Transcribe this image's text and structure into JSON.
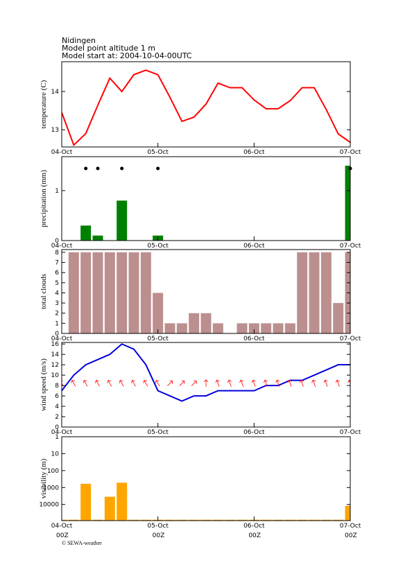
{
  "header": {
    "station": "Nidingen",
    "altitude": "Model point altitude  1 m",
    "model_start": "Model start at: 2004-10-04-00UTC"
  },
  "footer": {
    "copyright": "© SEWA-weather"
  },
  "chart_data": [
    {
      "type": "line",
      "ylabel": "temperature (C)",
      "color": "#ff0000",
      "x": [
        0,
        3,
        6,
        9,
        12,
        15,
        18,
        21,
        24,
        27,
        30,
        33,
        36,
        39,
        42,
        45,
        48,
        51,
        54,
        57,
        60,
        63,
        66,
        69,
        72
      ],
      "values": [
        13.45,
        12.6,
        12.9,
        13.64,
        14.35,
        14.0,
        14.44,
        14.56,
        14.44,
        13.85,
        13.22,
        13.33,
        13.67,
        14.22,
        14.1,
        14.1,
        13.78,
        13.55,
        13.55,
        13.76,
        14.1,
        14.1,
        13.53,
        12.89,
        12.67
      ],
      "xlim": [
        0,
        72
      ],
      "xticks": [
        {
          "value": 0,
          "label": "04-Oct"
        },
        {
          "value": 24,
          "label": "05-Oct"
        },
        {
          "value": 48,
          "label": "06-Oct"
        },
        {
          "value": 72,
          "label": "07-Oct"
        }
      ],
      "ylim": [
        12.55,
        14.78
      ],
      "yticks": [
        13,
        14
      ]
    },
    {
      "type": "bar",
      "ylabel": "precipitation (mm)",
      "color": "#008000",
      "x": [
        0,
        3,
        6,
        9,
        12,
        15,
        18,
        21,
        24,
        27,
        30,
        33,
        36,
        39,
        42,
        45,
        48,
        51,
        54,
        57,
        60,
        63,
        66,
        69,
        72
      ],
      "values": [
        0,
        0,
        0.3,
        0.1,
        0,
        0.8,
        0,
        0,
        0.1,
        0,
        0,
        0,
        0,
        0,
        0,
        0,
        0,
        0,
        0,
        0,
        0,
        0,
        0,
        0,
        1.5
      ],
      "xlim": [
        0,
        72
      ],
      "xticks": [
        {
          "value": 0,
          "label": "04-Oct"
        },
        {
          "value": 24,
          "label": "05-Oct"
        },
        {
          "value": 48,
          "label": "06-Oct"
        },
        {
          "value": 72,
          "label": "07-Oct"
        }
      ],
      "ylim": [
        0,
        1.68
      ],
      "yticks": [
        0,
        1
      ]
    },
    {
      "type": "bar",
      "ylabel": "total clouds",
      "color": "#bc8f8f",
      "x": [
        0,
        3,
        6,
        9,
        12,
        15,
        18,
        21,
        24,
        27,
        30,
        33,
        36,
        39,
        42,
        45,
        48,
        51,
        54,
        57,
        60,
        63,
        66,
        69,
        72
      ],
      "values": [
        null,
        8,
        8,
        8,
        8,
        8,
        8,
        8,
        4,
        1,
        1,
        2,
        2,
        1,
        0,
        1,
        1,
        1,
        1,
        1,
        8,
        8,
        8,
        3,
        8
      ],
      "xlim": [
        0,
        72
      ],
      "xticks": [
        {
          "value": 0,
          "label": "04-Oct"
        },
        {
          "value": 24,
          "label": "05-Oct"
        },
        {
          "value": 48,
          "label": "06-Oct"
        },
        {
          "value": 72,
          "label": "07-Oct"
        }
      ],
      "ylim": [
        0,
        8.27
      ],
      "yticks": [
        0,
        1,
        2,
        3,
        4,
        5,
        6,
        7,
        8
      ]
    },
    {
      "type": "line",
      "ylabel": "wind speed (m/s)",
      "color": "#0000dd",
      "x": [
        0,
        3,
        6,
        9,
        12,
        15,
        18,
        21,
        24,
        27,
        30,
        33,
        36,
        39,
        42,
        45,
        48,
        51,
        54,
        57,
        60,
        63,
        66,
        69,
        72
      ],
      "values": [
        7,
        10,
        12,
        13,
        14,
        16,
        15,
        12,
        7,
        6,
        5,
        6,
        6,
        7,
        7,
        7,
        7,
        8,
        8,
        9,
        9,
        10,
        11,
        12,
        12
      ],
      "arrows": {
        "color": "#ff0000",
        "angles": [
          330,
          330,
          330,
          330,
          330,
          330,
          330,
          330,
          330,
          45,
          45,
          45,
          0,
          340,
          340,
          340,
          340,
          340,
          340,
          340,
          340,
          340,
          340,
          340,
          340
        ]
      },
      "xlim": [
        0,
        72
      ],
      "xticks": [
        {
          "value": 0,
          "label": "04-Oct"
        },
        {
          "value": 24,
          "label": "05-Oct"
        },
        {
          "value": 48,
          "label": "06-Oct"
        },
        {
          "value": 72,
          "label": "07-Oct"
        }
      ],
      "ylim": [
        0,
        16.3
      ],
      "yticks": [
        0,
        2,
        4,
        6,
        8,
        10,
        12,
        14,
        16
      ]
    },
    {
      "type": "bar",
      "ylabel": "visibility (m)",
      "color": "#ffa500",
      "log_scale": true,
      "y_inverted": true,
      "x": [
        0,
        3,
        6,
        9,
        12,
        15,
        18,
        21,
        24,
        27,
        30,
        33,
        36,
        39,
        42,
        45,
        48,
        51,
        54,
        57,
        60,
        63,
        66,
        69,
        72
      ],
      "values": [
        80000,
        80000,
        600,
        80000,
        3500,
        520,
        80000,
        80000,
        80000,
        80000,
        80000,
        80000,
        80000,
        80000,
        80000,
        80000,
        80000,
        80000,
        80000,
        80000,
        80000,
        80000,
        80000,
        80000,
        12000
      ],
      "xlim": [
        0,
        72
      ],
      "xticks": [
        {
          "value": 0,
          "label": "04-Oct",
          "sublabel": "00Z"
        },
        {
          "value": 24,
          "label": "05-Oct",
          "sublabel": "00Z"
        },
        {
          "value": 48,
          "label": "06-Oct",
          "sublabel": "00Z"
        },
        {
          "value": 72,
          "label": "07-Oct",
          "sublabel": "00Z"
        }
      ],
      "ylim": [
        1,
        90000
      ],
      "yticks": [
        1,
        10,
        100,
        1000,
        10000
      ]
    }
  ]
}
